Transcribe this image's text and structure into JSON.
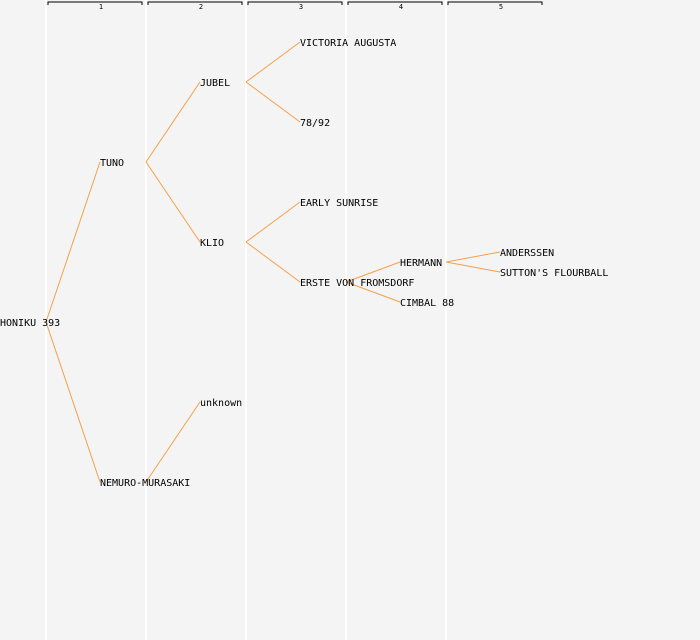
{
  "colors": {
    "background": "#f4f4f4",
    "column_line": "#ffffff",
    "edge": "#f5a04a",
    "bracket": "#000000",
    "text": "#000000"
  },
  "generations": [
    {
      "label": "1"
    },
    {
      "label": "2"
    },
    {
      "label": "3"
    },
    {
      "label": "4"
    },
    {
      "label": "5"
    }
  ],
  "tree": {
    "name": "HONIKU 393",
    "children": [
      {
        "name": "TUNO",
        "children": [
          {
            "name": "JUBEL",
            "children": [
              {
                "name": "VICTORIA AUGUSTA"
              },
              {
                "name": "78/92"
              }
            ]
          },
          {
            "name": "KLIO",
            "children": [
              {
                "name": "EARLY SUNRISE"
              },
              {
                "name": "ERSTE VON FROMSDORF",
                "children": [
                  {
                    "name": "HERMANN",
                    "children": [
                      {
                        "name": "ANDERSSEN"
                      },
                      {
                        "name": "SUTTON'S FLOURBALL"
                      }
                    ]
                  },
                  {
                    "name": "CIMBAL 88"
                  }
                ]
              }
            ]
          }
        ]
      },
      {
        "name": "NEMURO-MURASAKI",
        "children": [
          {
            "name": "unknown"
          }
        ]
      }
    ]
  }
}
